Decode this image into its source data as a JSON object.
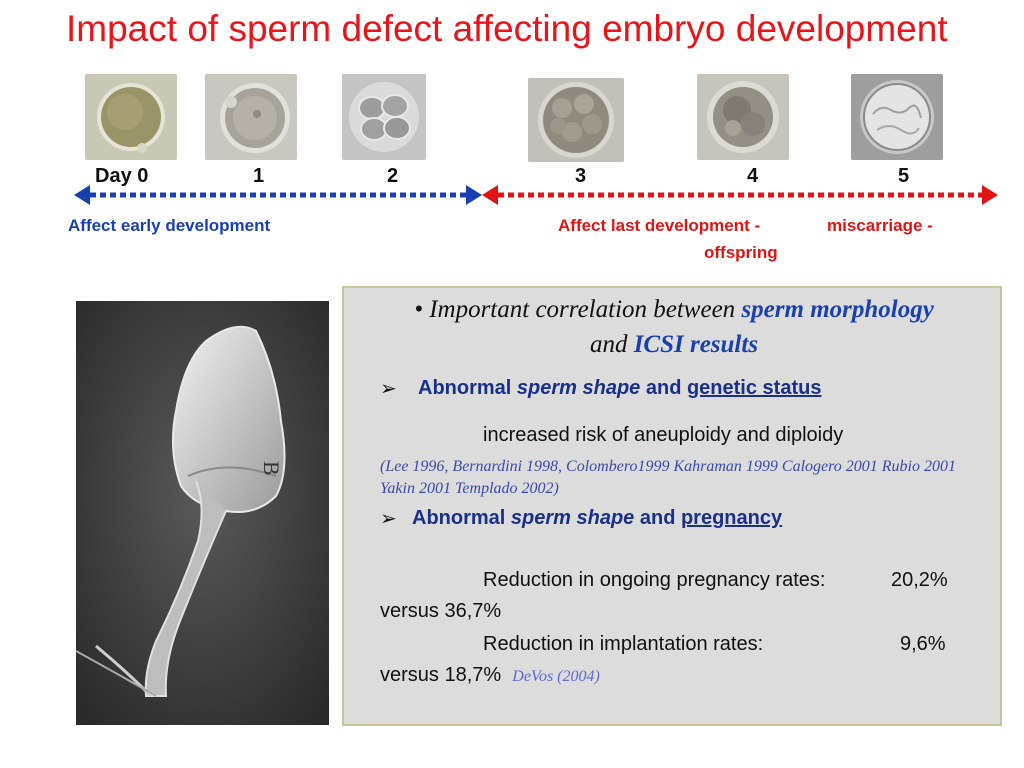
{
  "title": "Impact of sperm defect affecting embryo development",
  "timeline": {
    "days": [
      "Day 0",
      "1",
      "2",
      "3",
      "4",
      "5"
    ],
    "left_caption": "Affect early development",
    "right_caption_1": "Affect last development  -",
    "right_caption_2": "miscarriage -",
    "right_caption_3": "offspring",
    "colors": {
      "early": "#1a3fb0",
      "late": "#e01414"
    }
  },
  "panel": {
    "heading_bullet": "•",
    "heading_pre": "Important correlation between ",
    "heading_em1": "sperm morphology",
    "heading_mid": "and ",
    "heading_em2": "ICSI results",
    "item1": {
      "marker": "➢",
      "a": "Abnormal ",
      "b": "sperm shape",
      "c": " and ",
      "d": "genetic status"
    },
    "item1_detail": "increased risk of aneuploidy and diploidy",
    "references": "(Lee 1996, Bernardini 1998, Colombero1999 Kahraman 1999  Calogero 2001 Rubio 2001 Yakin 2001 Templado 2002)",
    "item2": {
      "marker": "➢",
      "a": "Abnormal ",
      "b": "sperm shape",
      "c": " and ",
      "d": "pregnancy"
    },
    "stat1_text": "Reduction in ongoing pregnancy rates:",
    "stat1_value": "20,2%",
    "stat1_cont": "versus 36,7%",
    "stat2_text": "Reduction in implantation rates:",
    "stat2_value": "9,6%",
    "stat2_cont": "versus 18,7%",
    "citation": "DeVos (2004)"
  },
  "image_label": "B",
  "icons": [
    "embryo-day0-image",
    "embryo-day1-image",
    "embryo-day2-image",
    "embryo-day3-image",
    "embryo-day4-image",
    "embryo-day5-image",
    "sperm-sem-image"
  ]
}
